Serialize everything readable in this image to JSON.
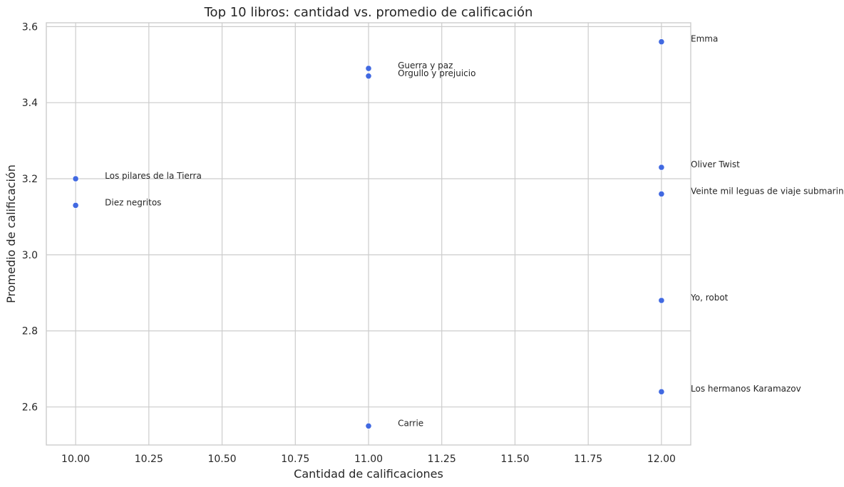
{
  "chart_data": {
    "type": "scatter",
    "title": "Top 10 libros: cantidad vs. promedio de calificación",
    "xlabel": "Cantidad de calificaciones",
    "ylabel": "Promedio de calificación",
    "xlim": [
      9.9,
      12.1
    ],
    "ylim": [
      2.5,
      3.61
    ],
    "xticks": [
      10.0,
      10.25,
      10.5,
      10.75,
      11.0,
      11.25,
      11.5,
      11.75,
      12.0
    ],
    "xtick_labels": [
      "10.00",
      "10.25",
      "10.50",
      "10.75",
      "11.00",
      "11.25",
      "11.50",
      "11.75",
      "12.00"
    ],
    "yticks": [
      2.6,
      2.8,
      3.0,
      3.2,
      3.4,
      3.6
    ],
    "ytick_labels": [
      "2.6",
      "2.8",
      "3.0",
      "3.2",
      "3.4",
      "3.6"
    ],
    "grid": true,
    "point_color": "#4169e1",
    "points": [
      {
        "label": "Emma",
        "x": 12,
        "y": 3.56
      },
      {
        "label": "Guerra y paz",
        "x": 11,
        "y": 3.49
      },
      {
        "label": "Orgullo y prejuicio",
        "x": 11,
        "y": 3.47
      },
      {
        "label": "Oliver Twist",
        "x": 12,
        "y": 3.23
      },
      {
        "label": "Los pilares de la Tierra",
        "x": 10,
        "y": 3.2
      },
      {
        "label": "Veinte mil leguas de viaje submarino",
        "x": 12,
        "y": 3.16
      },
      {
        "label": "Diez negritos",
        "x": 10,
        "y": 3.13
      },
      {
        "label": "Yo, robot",
        "x": 12,
        "y": 2.88
      },
      {
        "label": "Los hermanos Karamazov",
        "x": 12,
        "y": 2.64
      },
      {
        "label": "Carrie",
        "x": 11,
        "y": 2.55
      }
    ]
  }
}
